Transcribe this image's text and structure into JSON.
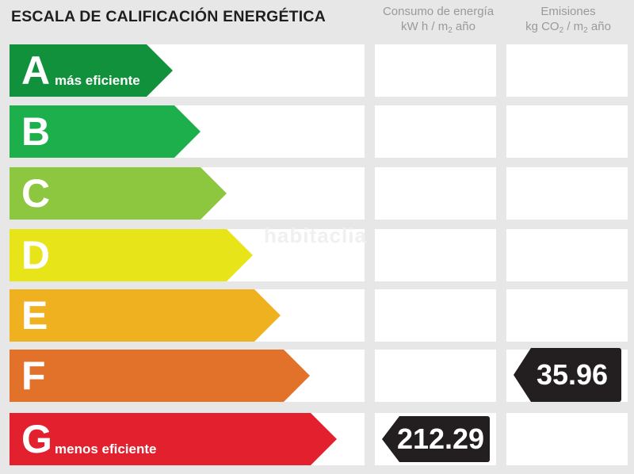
{
  "title": "ESCALA DE CALIFICACIÓN ENERGÉTICA",
  "columns": {
    "energy": {
      "line1": "Consumo de energía",
      "line2_a": "kW h / m",
      "line2_sub": "2",
      "line2_b": " año"
    },
    "emissions": {
      "line1": "Emisiones",
      "line2_a": "kg CO",
      "line2_sub": "2",
      "line2_c": " / m",
      "line2_sub2": "2",
      "line2_b": " año"
    }
  },
  "watermark": "habitaclia",
  "chart_data": {
    "type": "table",
    "ratings": [
      {
        "letter": "A",
        "label": "más eficiente",
        "color": "#12913d"
      },
      {
        "letter": "B",
        "label": "",
        "color": "#1caf4b"
      },
      {
        "letter": "C",
        "label": "",
        "color": "#8dc63f"
      },
      {
        "letter": "D",
        "label": "",
        "color": "#e8e41a"
      },
      {
        "letter": "E",
        "label": "",
        "color": "#f0b121"
      },
      {
        "letter": "F",
        "label": "",
        "color": "#e2722a"
      },
      {
        "letter": "G",
        "label": "menos eficiente",
        "color": "#e3212e"
      }
    ],
    "energy_consumption": {
      "rating": "G",
      "value": "212.29"
    },
    "emissions": {
      "rating": "F",
      "value": "35.96"
    }
  }
}
